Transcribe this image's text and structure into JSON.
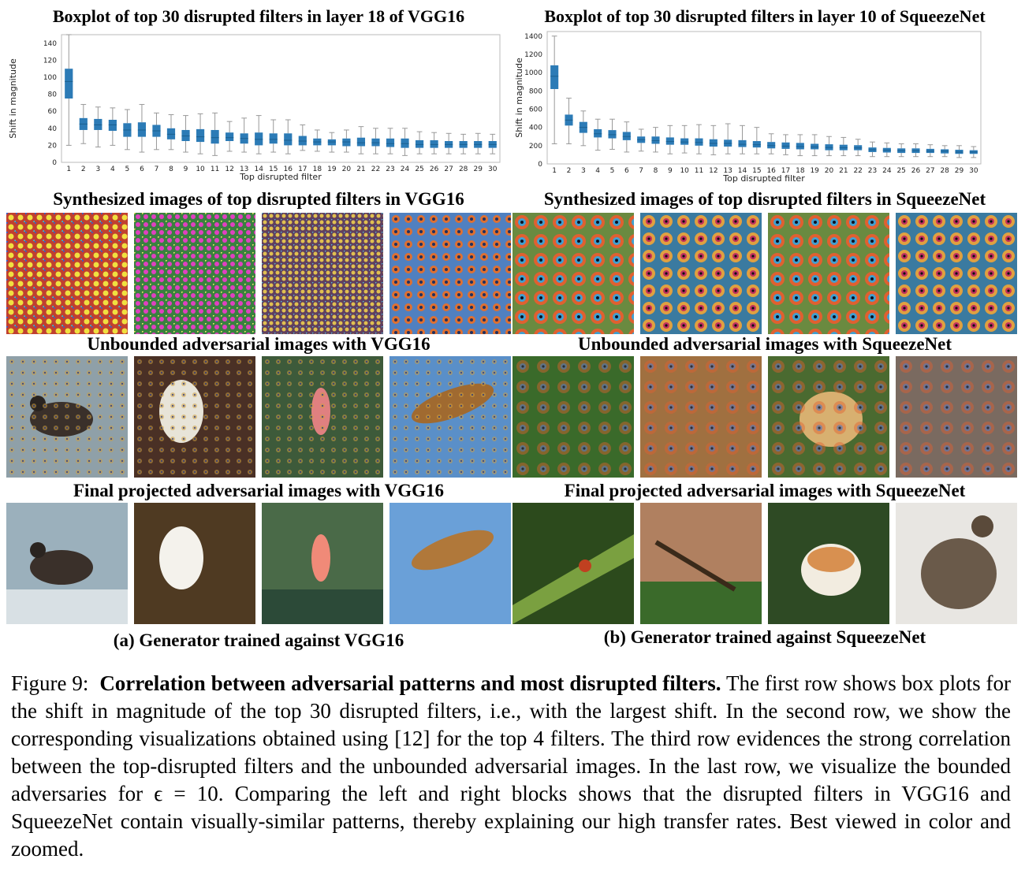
{
  "figure": {
    "left": {
      "plot_title": "Boxplot of top 30 disrupted filters in layer 18 of VGG16",
      "row2_title": "Synthesized images of top disrupted filters in VGG16",
      "row3_title": "Unbounded adversarial images with VGG16",
      "row4_title": "Final projected adversarial images with VGG16",
      "subcaption": "(a) Generator trained against VGG16"
    },
    "right": {
      "plot_title": "Boxplot of top 30 disrupted filters in layer 10 of SqueezeNet",
      "row2_title": "Synthesized images of top disrupted filters in SqueezeNet",
      "row3_title": "Unbounded adversarial images with SqueezeNet",
      "row4_title": "Final projected adversarial images with SqueezeNet",
      "subcaption": "(b) Generator trained against SqueezeNet"
    }
  },
  "caption": {
    "label": "Figure 9:",
    "bold": "Correlation between adversarial patterns and most disrupted filters.",
    "text": "The first row shows box plots for the shift in magnitude of the top 30 disrupted filters, i.e., with the largest shift. In the second row, we show the corresponding visualizations obtained using [12] for the top 4 filters. The third row evidences the strong correlation between the top-disrupted filters and the unbounded adversarial images. In the last row, we visualize the bounded adversaries for ϵ = 10. Comparing the left and right blocks shows that the disrupted filters in VGG16 and SqueezeNet contain visually-similar patterns, thereby explaining our high transfer rates. Best viewed in color and zoomed."
  },
  "colors": {
    "box": "#2c7bb6",
    "whisker": "#999999",
    "median": "#1a5f8f"
  },
  "chart_data": [
    {
      "type": "box",
      "title": "Boxplot of top 30 disrupted filters in layer 18 of VGG16",
      "xlabel": "Top disrupted filter",
      "ylabel": "Shift in magnitude",
      "ylim": [
        0,
        150
      ],
      "yticks": [
        0,
        20,
        40,
        60,
        80,
        100,
        120,
        140
      ],
      "categories": [
        "1",
        "2",
        "3",
        "4",
        "5",
        "6",
        "7",
        "8",
        "9",
        "10",
        "11",
        "12",
        "13",
        "14",
        "15",
        "16",
        "17",
        "18",
        "19",
        "20",
        "21",
        "22",
        "23",
        "24",
        "25",
        "26",
        "27",
        "28",
        "29",
        "30"
      ],
      "boxes": [
        {
          "low": 20,
          "q1": 75,
          "median": 95,
          "q3": 110,
          "high": 150
        },
        {
          "low": 22,
          "q1": 38,
          "median": 45,
          "q3": 52,
          "high": 68
        },
        {
          "low": 18,
          "q1": 38,
          "median": 44,
          "q3": 51,
          "high": 65
        },
        {
          "low": 20,
          "q1": 37,
          "median": 44,
          "q3": 50,
          "high": 64
        },
        {
          "low": 15,
          "q1": 30,
          "median": 38,
          "q3": 46,
          "high": 62
        },
        {
          "low": 12,
          "q1": 30,
          "median": 38,
          "q3": 47,
          "high": 68
        },
        {
          "low": 15,
          "q1": 30,
          "median": 37,
          "q3": 44,
          "high": 58
        },
        {
          "low": 15,
          "q1": 27,
          "median": 33,
          "q3": 40,
          "high": 56
        },
        {
          "low": 12,
          "q1": 25,
          "median": 31,
          "q3": 38,
          "high": 55
        },
        {
          "low": 10,
          "q1": 24,
          "median": 30,
          "q3": 39,
          "high": 57
        },
        {
          "low": 8,
          "q1": 22,
          "median": 29,
          "q3": 38,
          "high": 58
        },
        {
          "low": 13,
          "q1": 25,
          "median": 29,
          "q3": 35,
          "high": 48
        },
        {
          "low": 12,
          "q1": 22,
          "median": 28,
          "q3": 34,
          "high": 52
        },
        {
          "low": 10,
          "q1": 20,
          "median": 27,
          "q3": 35,
          "high": 55
        },
        {
          "low": 12,
          "q1": 22,
          "median": 27,
          "q3": 34,
          "high": 50
        },
        {
          "low": 10,
          "q1": 20,
          "median": 26,
          "q3": 34,
          "high": 50
        },
        {
          "low": 14,
          "q1": 20,
          "median": 25,
          "q3": 31,
          "high": 44
        },
        {
          "low": 13,
          "q1": 20,
          "median": 24,
          "q3": 28,
          "high": 38
        },
        {
          "low": 12,
          "q1": 20,
          "median": 24,
          "q3": 27,
          "high": 35
        },
        {
          "low": 12,
          "q1": 19,
          "median": 24,
          "q3": 28,
          "high": 38
        },
        {
          "low": 10,
          "q1": 19,
          "median": 23,
          "q3": 29,
          "high": 42
        },
        {
          "low": 10,
          "q1": 19,
          "median": 23,
          "q3": 28,
          "high": 40
        },
        {
          "low": 10,
          "q1": 18,
          "median": 22,
          "q3": 28,
          "high": 40
        },
        {
          "low": 8,
          "q1": 17,
          "median": 22,
          "q3": 28,
          "high": 40
        },
        {
          "low": 10,
          "q1": 17,
          "median": 21,
          "q3": 26,
          "high": 36
        },
        {
          "low": 10,
          "q1": 17,
          "median": 21,
          "q3": 26,
          "high": 35
        },
        {
          "low": 10,
          "q1": 17,
          "median": 21,
          "q3": 25,
          "high": 34
        },
        {
          "low": 10,
          "q1": 17,
          "median": 21,
          "q3": 25,
          "high": 33
        },
        {
          "low": 10,
          "q1": 17,
          "median": 21,
          "q3": 25,
          "high": 34
        },
        {
          "low": 10,
          "q1": 17,
          "median": 21,
          "q3": 25,
          "high": 33
        }
      ]
    },
    {
      "type": "box",
      "title": "Boxplot of top 30 disrupted filters in layer 10 of SqueezeNet",
      "xlabel": "Top disrupted filter",
      "ylabel": "Shift in magnitude",
      "ylim": [
        0,
        1450
      ],
      "yticks": [
        0,
        200,
        400,
        600,
        800,
        1000,
        1200,
        1400
      ],
      "categories": [
        "1",
        "2",
        "3",
        "4",
        "5",
        "6",
        "7",
        "8",
        "9",
        "10",
        "11",
        "12",
        "13",
        "14",
        "15",
        "16",
        "17",
        "18",
        "19",
        "20",
        "21",
        "22",
        "23",
        "24",
        "25",
        "26",
        "27",
        "28",
        "29",
        "30"
      ],
      "boxes": [
        {
          "low": 220,
          "q1": 820,
          "median": 960,
          "q3": 1080,
          "high": 1400
        },
        {
          "low": 220,
          "q1": 420,
          "median": 480,
          "q3": 540,
          "high": 720
        },
        {
          "low": 200,
          "q1": 340,
          "median": 400,
          "q3": 460,
          "high": 580
        },
        {
          "low": 150,
          "q1": 290,
          "median": 330,
          "q3": 380,
          "high": 490
        },
        {
          "low": 160,
          "q1": 280,
          "median": 320,
          "q3": 370,
          "high": 490
        },
        {
          "low": 130,
          "q1": 260,
          "median": 300,
          "q3": 350,
          "high": 460
        },
        {
          "low": 140,
          "q1": 230,
          "median": 265,
          "q3": 300,
          "high": 380
        },
        {
          "low": 130,
          "q1": 220,
          "median": 255,
          "q3": 300,
          "high": 400
        },
        {
          "low": 110,
          "q1": 210,
          "median": 245,
          "q3": 290,
          "high": 420
        },
        {
          "low": 120,
          "q1": 210,
          "median": 240,
          "q3": 280,
          "high": 420
        },
        {
          "low": 110,
          "q1": 200,
          "median": 235,
          "q3": 280,
          "high": 430
        },
        {
          "low": 100,
          "q1": 190,
          "median": 225,
          "q3": 270,
          "high": 420
        },
        {
          "low": 110,
          "q1": 190,
          "median": 225,
          "q3": 265,
          "high": 440
        },
        {
          "low": 110,
          "q1": 185,
          "median": 215,
          "q3": 260,
          "high": 420
        },
        {
          "low": 110,
          "q1": 180,
          "median": 210,
          "q3": 250,
          "high": 400
        },
        {
          "low": 110,
          "q1": 170,
          "median": 200,
          "q3": 240,
          "high": 330
        },
        {
          "low": 100,
          "q1": 165,
          "median": 195,
          "q3": 235,
          "high": 320
        },
        {
          "low": 90,
          "q1": 160,
          "median": 190,
          "q3": 230,
          "high": 320
        },
        {
          "low": 90,
          "q1": 160,
          "median": 185,
          "q3": 220,
          "high": 320
        },
        {
          "low": 90,
          "q1": 150,
          "median": 180,
          "q3": 215,
          "high": 300
        },
        {
          "low": 90,
          "q1": 150,
          "median": 178,
          "q3": 210,
          "high": 290
        },
        {
          "low": 90,
          "q1": 150,
          "median": 175,
          "q3": 205,
          "high": 270
        },
        {
          "low": 80,
          "q1": 130,
          "median": 155,
          "q3": 180,
          "high": 240
        },
        {
          "low": 80,
          "q1": 125,
          "median": 150,
          "q3": 175,
          "high": 230
        },
        {
          "low": 80,
          "q1": 120,
          "median": 145,
          "q3": 170,
          "high": 220
        },
        {
          "low": 80,
          "q1": 120,
          "median": 145,
          "q3": 170,
          "high": 220
        },
        {
          "low": 80,
          "q1": 120,
          "median": 140,
          "q3": 165,
          "high": 210
        },
        {
          "low": 80,
          "q1": 115,
          "median": 140,
          "q3": 160,
          "high": 200
        },
        {
          "low": 70,
          "q1": 110,
          "median": 130,
          "q3": 155,
          "high": 200
        },
        {
          "low": 70,
          "q1": 110,
          "median": 130,
          "q3": 150,
          "high": 190
        }
      ]
    }
  ]
}
